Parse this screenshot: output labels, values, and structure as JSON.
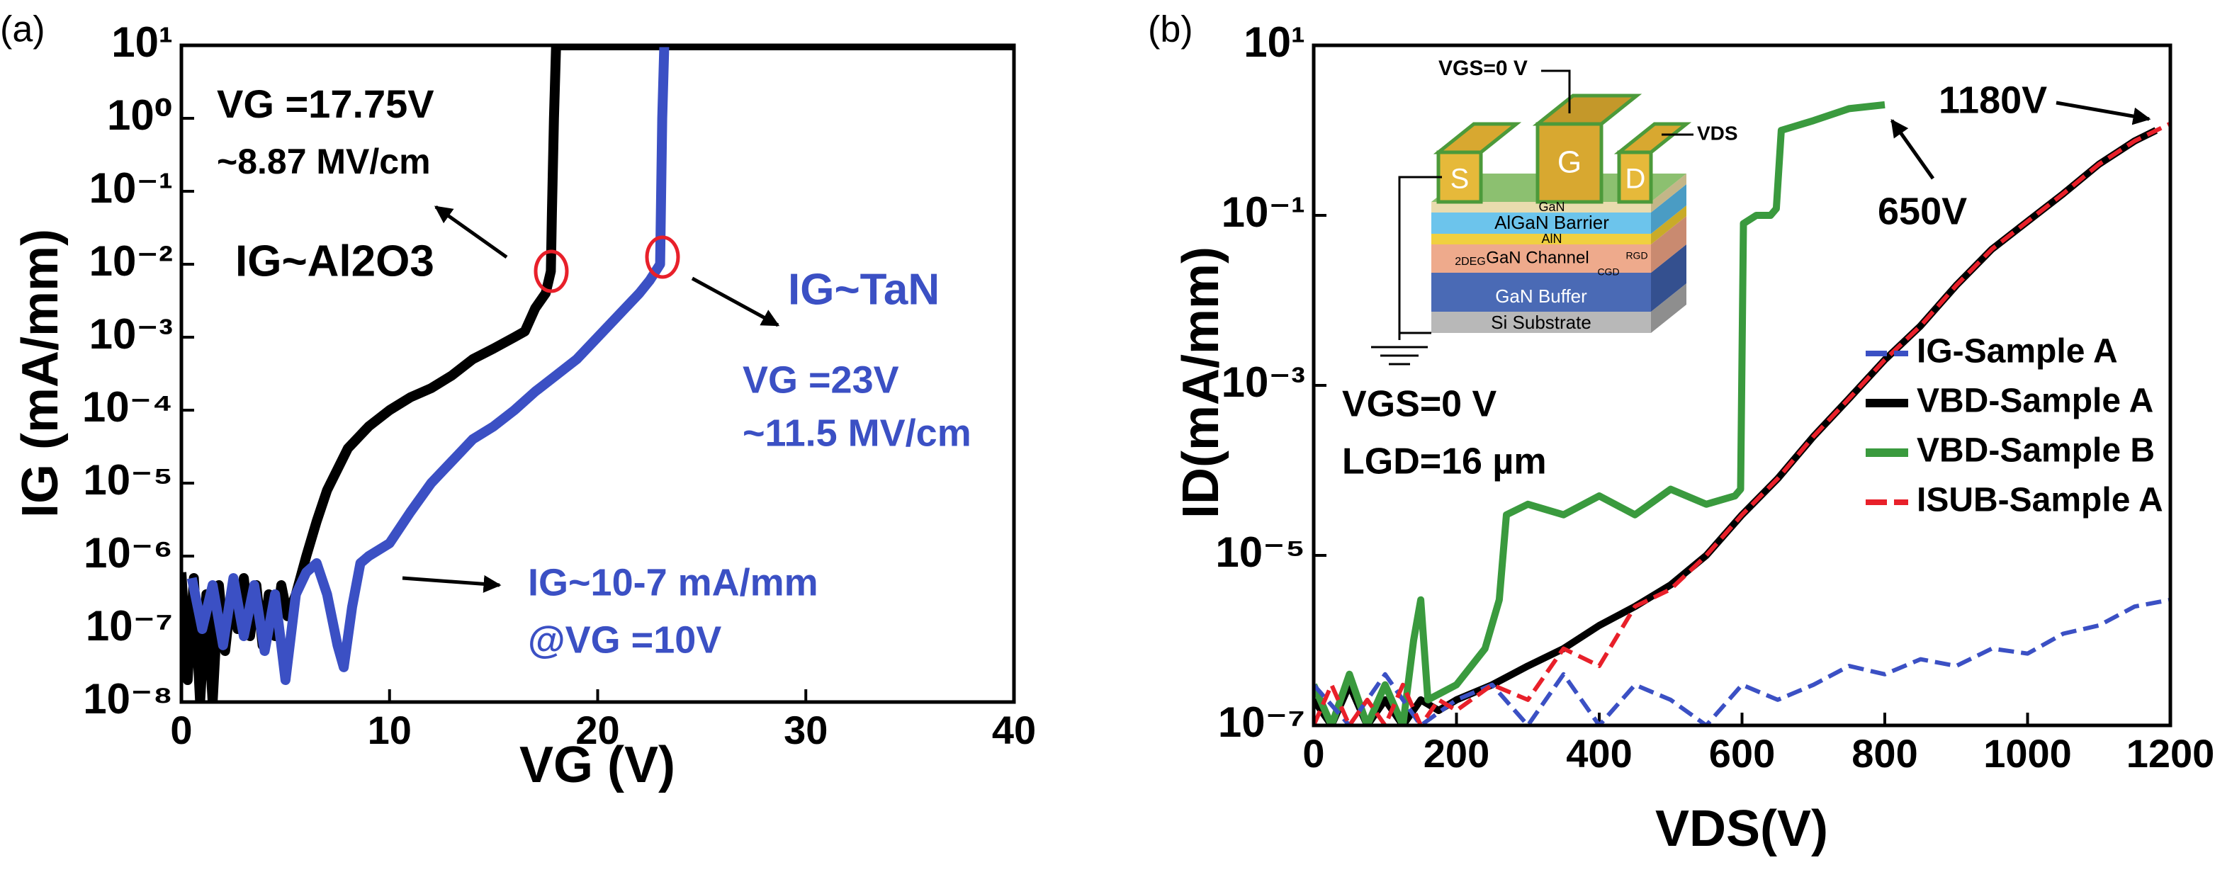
{
  "chart_data": [
    {
      "type": "line",
      "panel_label": "(a)",
      "xlabel": "VG (V)",
      "ylabel": "IG (mA/mm)",
      "log_y": true,
      "xlim": [
        0,
        40
      ],
      "xticks": [
        0,
        10,
        20,
        30,
        40
      ],
      "ylim": [
        1e-08,
        10
      ],
      "yticks": [
        {
          "value": 1e-08,
          "label": "10⁻⁸"
        },
        {
          "value": 1e-07,
          "label": "10⁻⁷"
        },
        {
          "value": 1e-06,
          "label": "10⁻⁶"
        },
        {
          "value": 1e-05,
          "label": "10⁻⁵"
        },
        {
          "value": 0.0001,
          "label": "10⁻⁴"
        },
        {
          "value": 0.001,
          "label": "10⁻³"
        },
        {
          "value": 0.01,
          "label": "10⁻²"
        },
        {
          "value": 0.1,
          "label": "10⁻¹"
        },
        {
          "value": 1,
          "label": "10⁰"
        },
        {
          "value": 10,
          "label": "10¹"
        }
      ],
      "series": [
        {
          "color": "#000000",
          "x": [
            0,
            0.3,
            0.6,
            0.9,
            1.2,
            1.5,
            1.8,
            2.1,
            2.4,
            2.7,
            3,
            3.3,
            3.6,
            3.9,
            4.2,
            4.5,
            4.8,
            5.1,
            5.5,
            6,
            6.5,
            7,
            8,
            9,
            10,
            11,
            12,
            13,
            14,
            15,
            16,
            16.5,
            17,
            17.5,
            17.75,
            17.8,
            17.9,
            18,
            20,
            25,
            30,
            35,
            40
          ],
          "values": [
            6e-07,
            2e-08,
            5e-07,
            1e-08,
            3e-07,
            1e-08,
            4e-07,
            5e-08,
            3e-07,
            1e-07,
            5e-07,
            8e-08,
            4e-07,
            6e-08,
            3e-07,
            8e-08,
            4e-07,
            1.5e-07,
            3e-07,
            1e-06,
            3e-06,
            8e-06,
            3e-05,
            6e-05,
            0.0001,
            0.00015,
            0.0002,
            0.0003,
            0.0005,
            0.0007,
            0.001,
            0.0012,
            0.0025,
            0.004,
            0.008,
            0.05,
            1,
            10,
            10,
            10,
            10,
            10,
            10
          ]
        },
        {
          "color": "#3b50c4",
          "x": [
            0.5,
            1,
            1.5,
            2,
            2.5,
            3,
            3.5,
            4,
            4.5,
            5,
            5.5,
            6,
            6.5,
            7,
            7.5,
            7.8,
            8.2,
            8.6,
            9,
            10,
            11,
            12,
            13,
            14,
            15,
            16,
            17,
            18,
            19,
            20,
            21,
            22,
            22.5,
            23,
            23.1,
            23.2
          ],
          "values": [
            5e-07,
            1e-07,
            4e-07,
            6e-08,
            5e-07,
            8e-08,
            4e-07,
            5e-08,
            3e-07,
            2e-08,
            3e-07,
            6e-07,
            8e-07,
            3e-07,
            6e-08,
            3e-08,
            2e-07,
            8e-07,
            1e-06,
            1.5e-06,
            4e-06,
            1e-05,
            2e-05,
            4e-05,
            6e-05,
            0.0001,
            0.00018,
            0.0003,
            0.0005,
            0.001,
            0.002,
            0.004,
            0.006,
            0.01,
            1,
            10
          ]
        }
      ],
      "annotations": [
        "VG =17.75V",
        "~8.87 MV/cm",
        "IG~Al2O3",
        "IG~TaN",
        "VG =23V",
        "~11.5 MV/cm",
        "IG~10-7 mA/mm",
        "@VG =10V"
      ]
    },
    {
      "type": "line",
      "panel_label": "(b)",
      "xlabel": "VDS(V)",
      "ylabel": "ID(mA/mm)",
      "log_y": true,
      "xlim": [
        0,
        1200
      ],
      "xticks": [
        0,
        200,
        400,
        600,
        800,
        1000,
        1200
      ],
      "ylim": [
        1e-07,
        10
      ],
      "yticks": [
        {
          "value": 1e-07,
          "label": "10⁻⁷"
        },
        {
          "value": 1e-05,
          "label": "10⁻⁵"
        },
        {
          "value": 0.001,
          "label": "10⁻³"
        },
        {
          "value": 0.1,
          "label": "10⁻¹"
        },
        {
          "value": 10,
          "label": "10¹"
        }
      ],
      "legend": "center right",
      "series": [
        {
          "name": "IG-Sample A",
          "color": "#3b50c4",
          "dashed": true,
          "x": [
            0,
            50,
            100,
            150,
            200,
            250,
            300,
            350,
            400,
            450,
            500,
            550,
            600,
            650,
            700,
            750,
            800,
            850,
            900,
            950,
            1000,
            1050,
            1100,
            1150,
            1200
          ],
          "values": [
            3e-07,
            1e-07,
            4e-07,
            1e-07,
            2e-07,
            3e-07,
            1e-07,
            4e-07,
            1e-07,
            3e-07,
            2e-07,
            1e-07,
            3e-07,
            2e-07,
            3e-07,
            5e-07,
            4e-07,
            6e-07,
            5e-07,
            8e-07,
            7e-07,
            1.2e-06,
            1.5e-06,
            2.5e-06,
            3e-06
          ]
        },
        {
          "name": "VBD-Sample A",
          "color": "#000000",
          "dashed": false,
          "x": [
            0,
            25,
            50,
            75,
            100,
            125,
            150,
            175,
            200,
            250,
            300,
            350,
            400,
            450,
            500,
            550,
            600,
            650,
            700,
            750,
            800,
            850,
            900,
            950,
            1000,
            1050,
            1100,
            1150,
            1180
          ],
          "values": [
            2e-07,
            1e-07,
            3e-07,
            1e-07,
            2e-07,
            1e-07,
            2e-07,
            1.5e-07,
            2e-07,
            3e-07,
            5e-07,
            8e-07,
            1.5e-06,
            2.5e-06,
            4.5e-06,
            1e-05,
            3e-05,
            8e-05,
            0.00025,
            0.0007,
            0.002,
            0.005,
            0.015,
            0.04,
            0.085,
            0.18,
            0.4,
            0.75,
            1
          ]
        },
        {
          "name": "VBD-Sample B",
          "color": "#3a9a3e",
          "dashed": false,
          "x": [
            0,
            25,
            50,
            75,
            100,
            125,
            140,
            150,
            160,
            200,
            240,
            260,
            270,
            300,
            350,
            400,
            450,
            500,
            550,
            590,
            598,
            602,
            620,
            640,
            648,
            655,
            700,
            750,
            800
          ],
          "values": [
            3e-07,
            1e-07,
            4e-07,
            1e-07,
            3e-07,
            1e-07,
            1e-06,
            3e-06,
            2e-07,
            3e-07,
            8e-07,
            3e-06,
            3e-05,
            4e-05,
            3e-05,
            5e-05,
            3e-05,
            6e-05,
            4e-05,
            5e-05,
            6e-05,
            0.08,
            0.1,
            0.1,
            0.12,
            1,
            1.3,
            1.8,
            2
          ]
        },
        {
          "name": "ISUB-Sample A",
          "color": "#e8202a",
          "dashed": true,
          "x": [
            0,
            25,
            50,
            75,
            100,
            125,
            150,
            175,
            200,
            250,
            300,
            350,
            400,
            450,
            500,
            550,
            600,
            650,
            700,
            750,
            800,
            850,
            900,
            950,
            1000,
            1050,
            1100,
            1150,
            1200
          ],
          "values": [
            1e-07,
            3e-07,
            1e-07,
            2e-07,
            1e-07,
            3e-07,
            1e-07,
            2e-07,
            1.5e-07,
            3e-07,
            2e-07,
            8e-07,
            5e-07,
            2.5e-06,
            4e-06,
            1e-05,
            3e-05,
            8e-05,
            0.00025,
            0.0007,
            0.002,
            0.005,
            0.015,
            0.04,
            0.085,
            0.18,
            0.4,
            0.75,
            1.2
          ]
        }
      ],
      "annotations": [
        "VGS=0 V",
        "LGD=16 µm",
        "650V",
        "1180V"
      ]
    }
  ],
  "inset_diagram": {
    "labels": [
      "VGS=0 V",
      "VDS",
      "S",
      "G",
      "D",
      "GaN",
      "AlGaN Barrier",
      "AlN",
      "2DEG",
      "GaN Channel",
      "CGD",
      "RGD",
      "GaN Buffer",
      "Si Substrate"
    ]
  }
}
